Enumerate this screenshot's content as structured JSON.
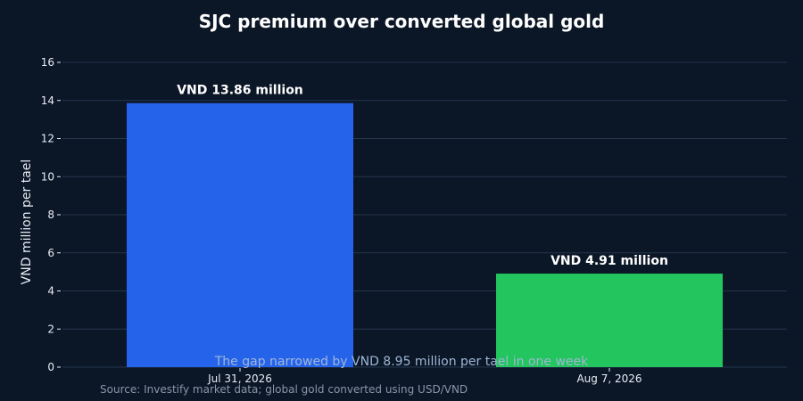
{
  "chart_data": {
    "type": "bar",
    "title": "SJC premium over converted global gold",
    "xlabel": "",
    "ylabel": "VND million per tael",
    "categories": [
      "Jul 31, 2026",
      "Aug 7, 2026"
    ],
    "values": [
      13.86,
      4.91
    ],
    "data_labels": [
      "VND 13.86 million",
      "VND 4.91 million"
    ],
    "bar_colors": [
      "#2563eb",
      "#22c55e"
    ],
    "ylim": [
      0,
      16
    ],
    "yticks": [
      0,
      2,
      4,
      6,
      8,
      10,
      12,
      14,
      16
    ],
    "grid": true,
    "legend": "none",
    "annotation": "The gap narrowed by VND 8.95 million per tael in one week",
    "source": "Source: Investify market data; global gold converted using USD/VND"
  },
  "colors": {
    "background": "#0b1626",
    "gridline": "#26364d",
    "text": "#ffffff",
    "annotation": "#9fb6d6",
    "source": "#8a97a8"
  }
}
